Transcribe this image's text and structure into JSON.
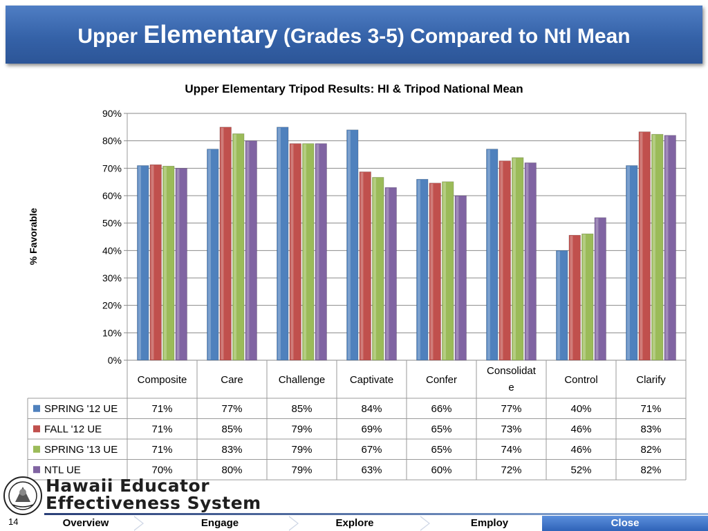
{
  "slide": {
    "title_part1": "Upper ",
    "title_part2": "Elementary",
    "title_part3": " (Grades 3-5) Compared to Ntl Mean",
    "page_number": "14"
  },
  "logo": {
    "line1": "Hawaii Educator",
    "line2": "Effectiveness System"
  },
  "nav": {
    "items": [
      "Overview",
      "Engage",
      "Explore",
      "Employ",
      "Close"
    ]
  },
  "colors": {
    "title_bar": "#3a67ad",
    "series": [
      "#4f81bd",
      "#c0504d",
      "#9bbb59",
      "#8064a2"
    ],
    "grid": "#868686"
  },
  "chart_data": {
    "type": "bar",
    "title": "Upper Elementary Tripod Results: HI & Tripod National Mean",
    "xlabel": "",
    "ylabel": "% Favorable",
    "ylim": [
      0,
      90
    ],
    "yticks": [
      "0%",
      "10%",
      "20%",
      "30%",
      "40%",
      "50%",
      "60%",
      "70%",
      "80%",
      "90%"
    ],
    "grid": true,
    "legend": "data-table",
    "categories": [
      "Composite",
      "Care",
      "Challenge",
      "Captivate",
      "Confer",
      "Consolidate",
      "Control",
      "Clarify"
    ],
    "series": [
      {
        "name": "SPRING '12 UE",
        "values": [
          71,
          77,
          85,
          84,
          66,
          77,
          40,
          71
        ],
        "labels": [
          "71%",
          "77%",
          "85%",
          "84%",
          "66%",
          "77%",
          "40%",
          "71%"
        ]
      },
      {
        "name": "FALL '12 UE",
        "values": [
          71.3,
          85,
          79,
          68.7,
          64.6,
          72.7,
          45.6,
          83.3
        ],
        "labels": [
          "71%",
          "85%",
          "79%",
          "69%",
          "65%",
          "73%",
          "46%",
          "83%"
        ]
      },
      {
        "name": "SPRING '13 UE",
        "values": [
          70.8,
          82.6,
          79,
          66.7,
          65.1,
          73.9,
          46.1,
          82.4
        ],
        "labels": [
          "71%",
          "83%",
          "79%",
          "67%",
          "65%",
          "74%",
          "46%",
          "82%"
        ]
      },
      {
        "name": "NTL UE",
        "values": [
          70,
          80,
          79,
          63,
          60,
          72,
          52,
          82
        ],
        "labels": [
          "70%",
          "80%",
          "79%",
          "63%",
          "60%",
          "72%",
          "52%",
          "82%"
        ]
      }
    ]
  }
}
